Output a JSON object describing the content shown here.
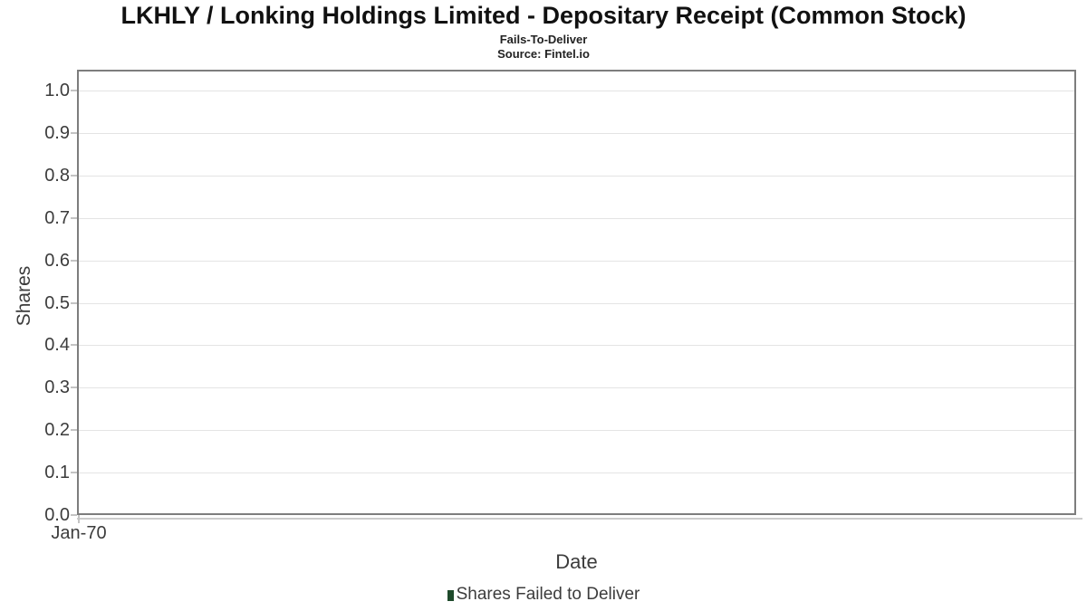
{
  "header": {
    "title": "LKHLY / Lonking Holdings Limited - Depositary Receipt (Common Stock)",
    "subtitle": "Fails-To-Deliver",
    "source": "Source: Fintel.io"
  },
  "chart_data": {
    "type": "bar",
    "title": "LKHLY / Lonking Holdings Limited - Depositary Receipt (Common Stock)",
    "subtitle": "Fails-To-Deliver",
    "source": "Source: Fintel.io",
    "xlabel": "Date",
    "ylabel": "Shares",
    "ylim": [
      0.0,
      1.05
    ],
    "yticks": [
      0.0,
      0.1,
      0.2,
      0.3,
      0.4,
      0.5,
      0.6,
      0.7,
      0.8,
      0.9,
      1.0
    ],
    "xticks": [
      "Jan-70"
    ],
    "grid": true,
    "legend_position": "bottom",
    "series": [
      {
        "name": "Shares Failed to Deliver",
        "color": "#1e4a2b",
        "x": [],
        "values": []
      }
    ]
  },
  "axes": {
    "x_label": "Date",
    "y_label": "Shares",
    "x_tick_labels": [
      "Jan-70"
    ]
  },
  "legend": {
    "items": [
      {
        "label": "Shares Failed to Deliver",
        "color": "#1e4a2b"
      }
    ]
  },
  "colors": {
    "plot_border": "#7d7d7d",
    "gridline": "#e4e4e4",
    "tick_text": "#3c3c3c",
    "title_text": "#111111",
    "legend_marker": "#1e4a2b"
  }
}
